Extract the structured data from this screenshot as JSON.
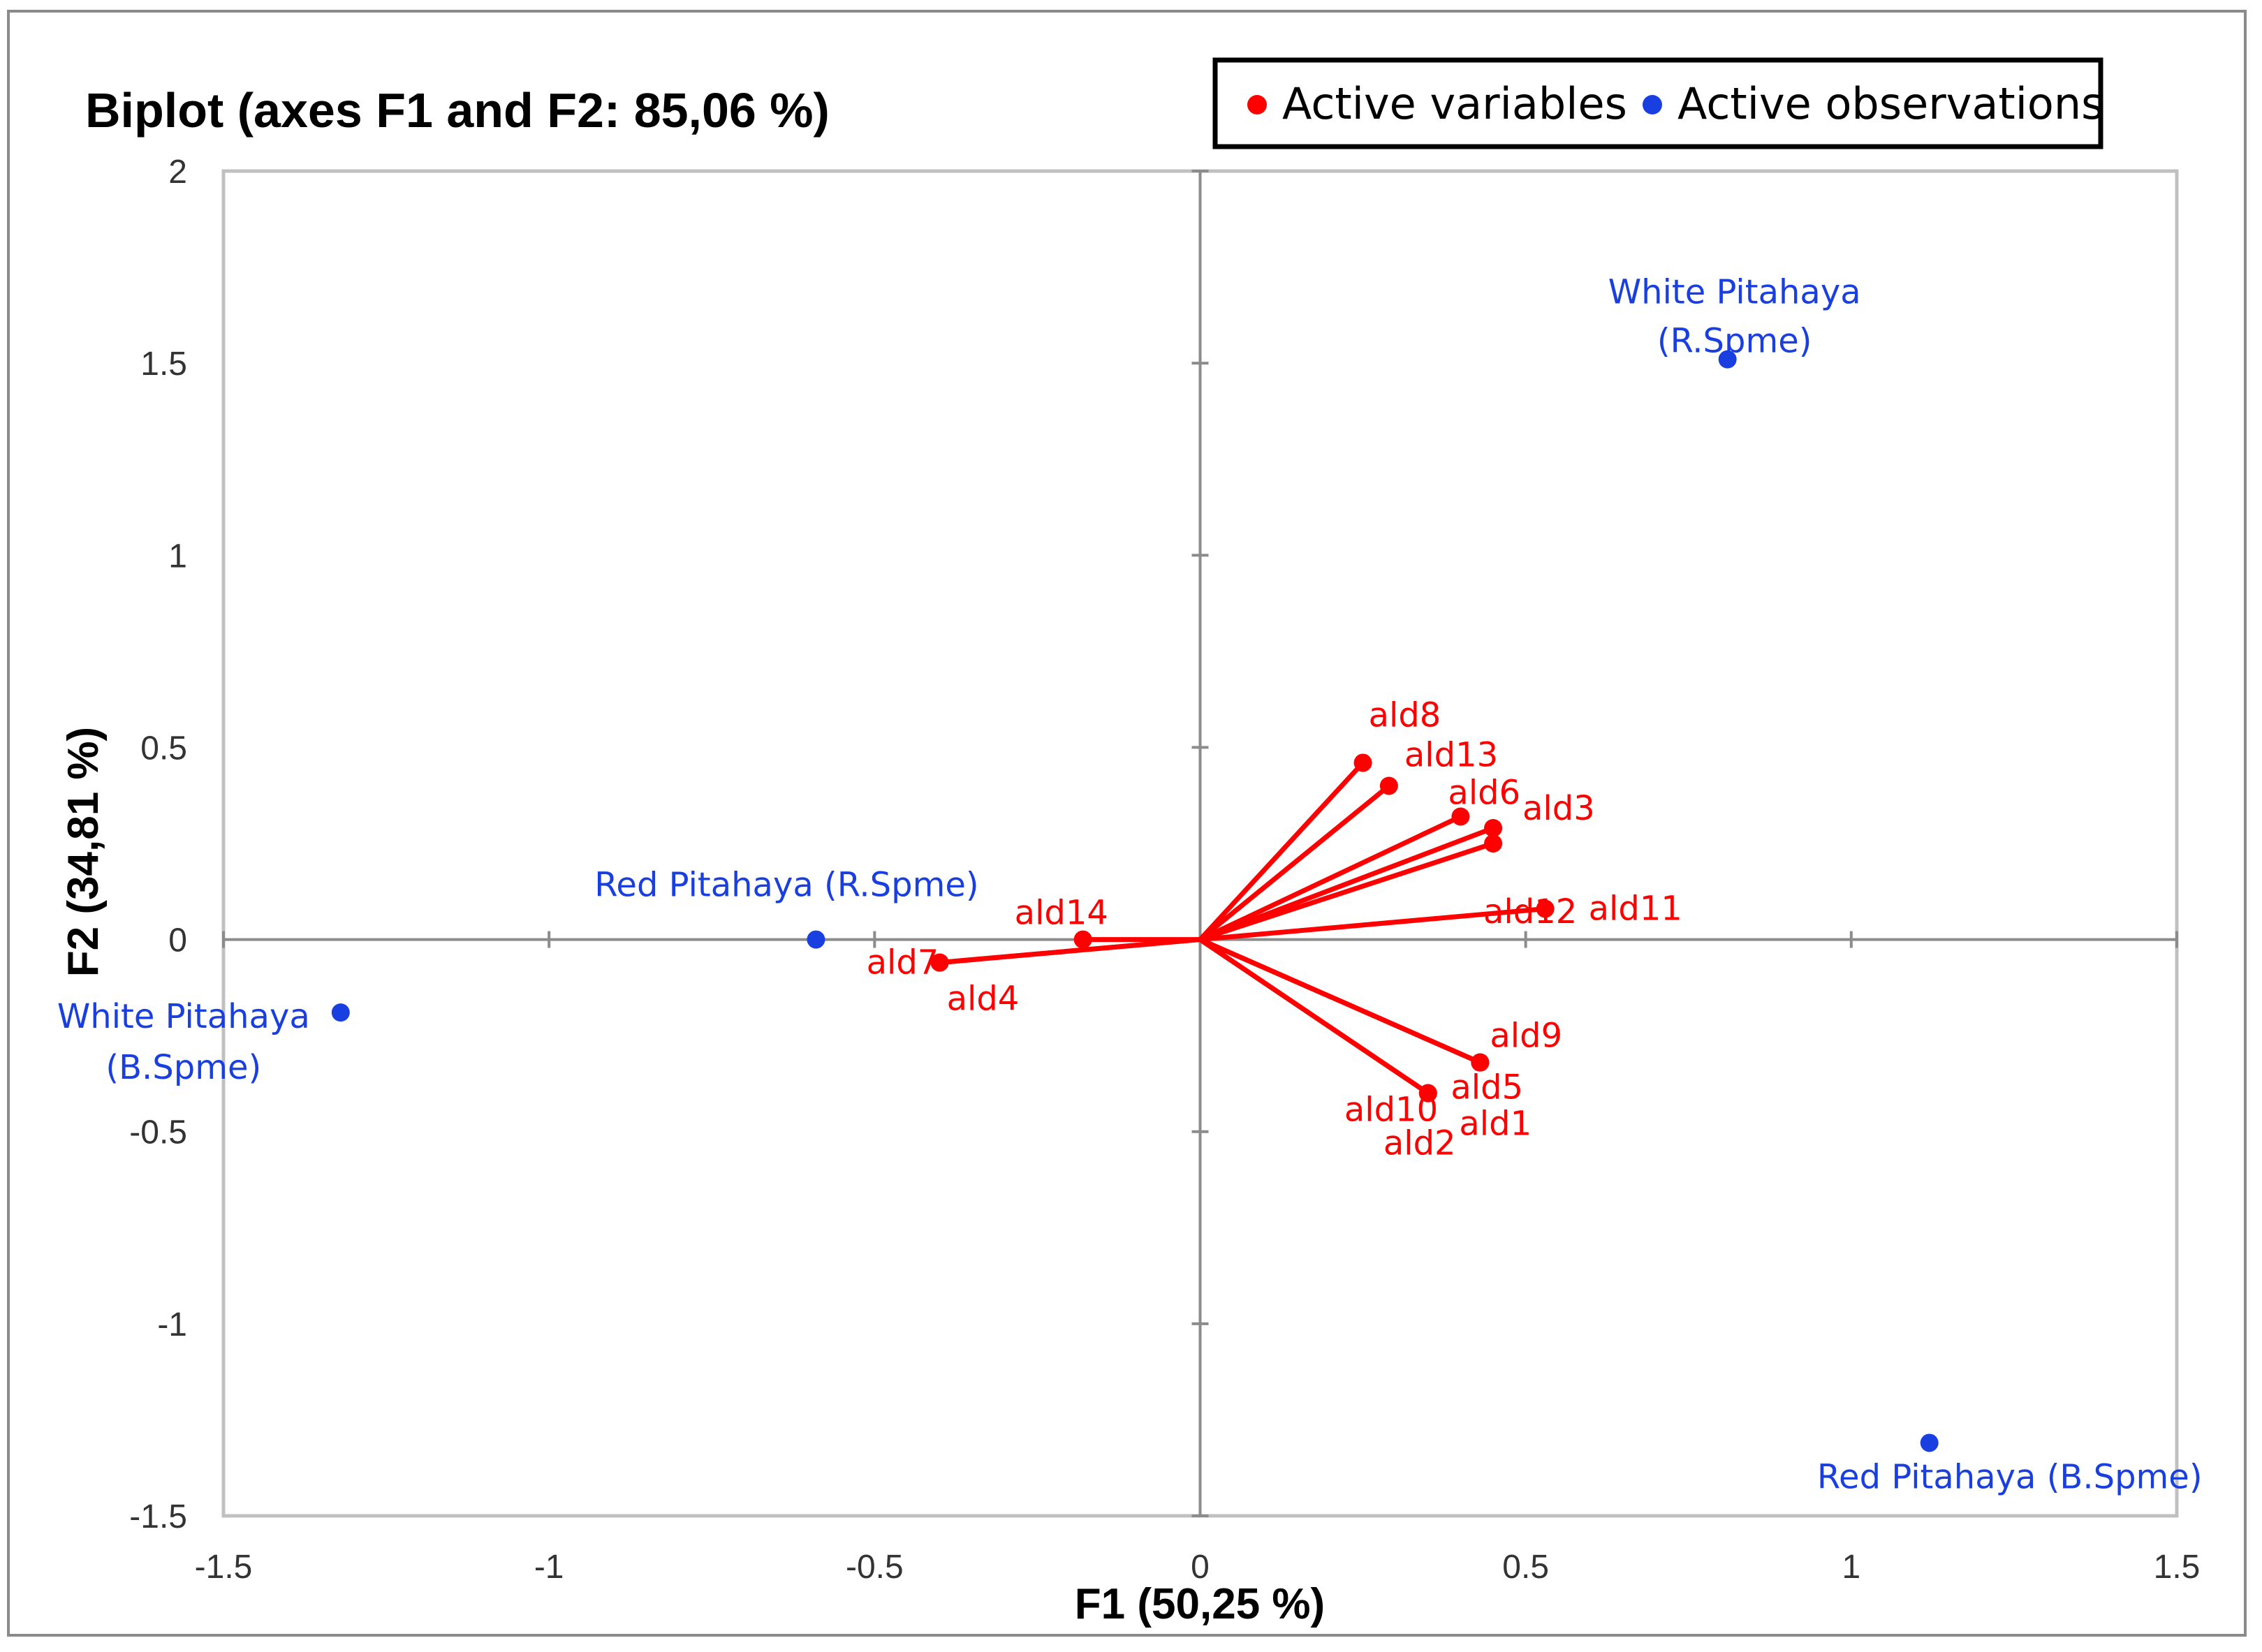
{
  "colors": {
    "variables": "#ff0000",
    "observations": "#1a3fe0",
    "axes": "#8c8c8c",
    "plot_border": "#c0c0c0"
  },
  "chart_data": {
    "type": "scatter",
    "title": "Biplot (axes F1 and F2: 85,06 %)",
    "xlabel": "F1 (50,25 %)",
    "ylabel": "F2 (34,81 %)",
    "xlim": [
      -1.5,
      1.5
    ],
    "ylim": [
      -1.5,
      2
    ],
    "xticks": [
      -1.5,
      -1,
      -0.5,
      0,
      0.5,
      1,
      1.5
    ],
    "yticks": [
      -1.5,
      -1,
      -0.5,
      0,
      0.5,
      1,
      1.5,
      2
    ],
    "xtick_labels": [
      "-1.5",
      "-1",
      "-0.5",
      "0",
      "0.5",
      "1",
      "1.5"
    ],
    "ytick_labels": [
      "-1.5",
      "-1",
      "-0.5",
      "0",
      "0.5",
      "1",
      "1.5",
      "2"
    ],
    "grid": false,
    "legend": {
      "position": "top-right",
      "items": [
        {
          "label": "Active variables",
          "color": "#ff0000"
        },
        {
          "label": "Active observations",
          "color": "#1a3fe0"
        }
      ]
    },
    "series": [
      {
        "name": "Active variables",
        "style": "vectors",
        "points": [
          {
            "label": "ald1",
            "x": 0.43,
            "y": -0.32
          },
          {
            "label": "ald2",
            "x": 0.35,
            "y": -0.4
          },
          {
            "label": "ald3",
            "x": 0.45,
            "y": 0.29
          },
          {
            "label": "ald4",
            "x": -0.4,
            "y": -0.06
          },
          {
            "label": "ald5",
            "x": 0.43,
            "y": -0.32
          },
          {
            "label": "ald6",
            "x": 0.4,
            "y": 0.32
          },
          {
            "label": "ald7",
            "x": -0.4,
            "y": -0.06
          },
          {
            "label": "ald8",
            "x": 0.25,
            "y": 0.46
          },
          {
            "label": "ald9",
            "x": 0.43,
            "y": -0.32
          },
          {
            "label": "ald10",
            "x": 0.35,
            "y": -0.4
          },
          {
            "label": "ald11",
            "x": 0.53,
            "y": 0.08
          },
          {
            "label": "ald12",
            "x": 0.45,
            "y": 0.25
          },
          {
            "label": "ald13",
            "x": 0.29,
            "y": 0.4
          },
          {
            "label": "ald14",
            "x": -0.18,
            "y": 0.0
          }
        ]
      },
      {
        "name": "Active observations",
        "style": "points",
        "points": [
          {
            "label": "White Pitahaya (R.Spme)",
            "label_lines": [
              "White Pitahaya",
              "(R.Spme)"
            ],
            "x": 0.81,
            "y": 1.51
          },
          {
            "label": "Red Pitahaya (R.Spme)",
            "label_lines": [
              "Red Pitahaya (R.Spme)"
            ],
            "x": -0.59,
            "y": 0.0
          },
          {
            "label": "White Pitahaya (B.Spme)",
            "label_lines": [
              "White Pitahaya",
              "(B.Spme)"
            ],
            "x": -1.32,
            "y": -0.19
          },
          {
            "label": "Red Pitahaya (B.Spme)",
            "label_lines": [
              "Red Pitahaya (B.Spme)"
            ],
            "x": 1.12,
            "y": -1.31
          }
        ]
      }
    ]
  }
}
